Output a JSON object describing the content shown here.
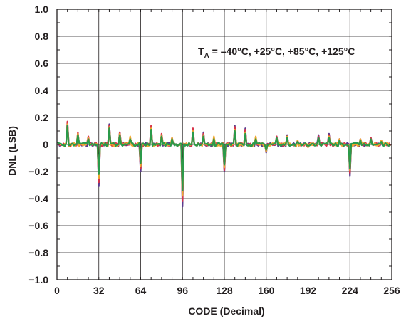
{
  "chart_data": {
    "type": "line",
    "title": "",
    "xlabel": "CODE (Decimal)",
    "ylabel": "DNL (LSB)",
    "xlim": [
      0,
      256
    ],
    "ylim": [
      -1.0,
      1.0
    ],
    "x_ticks": [
      0,
      32,
      64,
      96,
      128,
      160,
      192,
      224,
      256
    ],
    "x_tick_labels": [
      "0",
      "32",
      "64",
      "96",
      "128",
      "160",
      "192",
      "224",
      "256"
    ],
    "y_ticks": [
      1.0,
      0.8,
      0.6,
      0.4,
      0.2,
      0,
      -0.2,
      -0.4,
      -0.6,
      -0.8,
      -1.0
    ],
    "y_tick_labels": [
      "1.0",
      "0.8",
      "0.6",
      "0.4",
      "0.2",
      "0",
      "−0.2",
      "−0.4",
      "−0.6",
      "−0.8",
      "−1.0"
    ],
    "grid": true,
    "annotation": {
      "prefix": "T",
      "subscript": "A",
      "text": " = –40°C, +25°C, +85°C, +125°C"
    },
    "series": [
      {
        "color": "#5b3a8c",
        "values": [
          [
            8,
            0.16
          ],
          [
            16,
            0.08
          ],
          [
            24,
            0.05
          ],
          [
            32,
            -0.31
          ],
          [
            40,
            0.15
          ],
          [
            48,
            0.09
          ],
          [
            56,
            0.05
          ],
          [
            64,
            -0.2
          ],
          [
            72,
            0.13
          ],
          [
            80,
            0.07
          ],
          [
            88,
            0.04
          ],
          [
            96,
            -0.46
          ],
          [
            104,
            0.11
          ],
          [
            112,
            0.09
          ],
          [
            120,
            0.05
          ],
          [
            128,
            -0.2
          ],
          [
            136,
            0.14
          ],
          [
            144,
            0.12
          ],
          [
            152,
            0.05
          ],
          [
            160,
            -0.06
          ],
          [
            168,
            0.06
          ],
          [
            176,
            0.07
          ],
          [
            184,
            0.03
          ],
          [
            192,
            -0.02
          ],
          [
            200,
            0.07
          ],
          [
            208,
            0.08
          ],
          [
            216,
            0.04
          ],
          [
            224,
            -0.23
          ],
          [
            232,
            0.04
          ],
          [
            240,
            0.05
          ],
          [
            248,
            0.02
          ]
        ]
      },
      {
        "color": "#d8344a",
        "values": [
          [
            8,
            0.17
          ],
          [
            16,
            0.09
          ],
          [
            24,
            0.06
          ],
          [
            32,
            -0.28
          ],
          [
            40,
            0.14
          ],
          [
            48,
            0.09
          ],
          [
            56,
            0.05
          ],
          [
            64,
            -0.18
          ],
          [
            72,
            0.14
          ],
          [
            80,
            0.08
          ],
          [
            88,
            0.05
          ],
          [
            96,
            -0.42
          ],
          [
            104,
            0.12
          ],
          [
            112,
            0.08
          ],
          [
            120,
            0.05
          ],
          [
            128,
            -0.19
          ],
          [
            136,
            0.13
          ],
          [
            144,
            0.11
          ],
          [
            152,
            0.05
          ],
          [
            160,
            -0.05
          ],
          [
            168,
            0.06
          ],
          [
            176,
            0.06
          ],
          [
            184,
            0.03
          ],
          [
            192,
            -0.02
          ],
          [
            200,
            0.06
          ],
          [
            208,
            0.07
          ],
          [
            216,
            0.04
          ],
          [
            224,
            -0.21
          ],
          [
            232,
            0.04
          ],
          [
            240,
            0.05
          ],
          [
            248,
            0.03
          ]
        ]
      },
      {
        "color": "#f0a830",
        "values": [
          [
            8,
            0.15
          ],
          [
            16,
            0.08
          ],
          [
            24,
            0.05
          ],
          [
            32,
            -0.25
          ],
          [
            40,
            0.13
          ],
          [
            48,
            0.08
          ],
          [
            56,
            0.06
          ],
          [
            64,
            -0.16
          ],
          [
            72,
            0.12
          ],
          [
            80,
            0.07
          ],
          [
            88,
            0.05
          ],
          [
            96,
            -0.38
          ],
          [
            104,
            0.1
          ],
          [
            112,
            0.07
          ],
          [
            120,
            0.06
          ],
          [
            128,
            -0.17
          ],
          [
            136,
            0.11
          ],
          [
            144,
            0.09
          ],
          [
            152,
            0.06
          ],
          [
            160,
            -0.05
          ],
          [
            168,
            0.05
          ],
          [
            176,
            0.06
          ],
          [
            184,
            0.03
          ],
          [
            192,
            -0.02
          ],
          [
            200,
            0.05
          ],
          [
            208,
            0.06
          ],
          [
            216,
            0.04
          ],
          [
            224,
            -0.19
          ],
          [
            232,
            0.04
          ],
          [
            240,
            0.04
          ],
          [
            248,
            0.03
          ]
        ]
      },
      {
        "color": "#2a9a4a",
        "values": [
          [
            8,
            0.14
          ],
          [
            16,
            0.07
          ],
          [
            24,
            0.04
          ],
          [
            32,
            -0.22
          ],
          [
            40,
            0.12
          ],
          [
            48,
            0.07
          ],
          [
            56,
            0.04
          ],
          [
            64,
            -0.14
          ],
          [
            72,
            0.11
          ],
          [
            80,
            0.06
          ],
          [
            88,
            0.04
          ],
          [
            96,
            -0.34
          ],
          [
            104,
            0.09
          ],
          [
            112,
            0.06
          ],
          [
            120,
            0.04
          ],
          [
            128,
            -0.15
          ],
          [
            136,
            0.1
          ],
          [
            144,
            0.08
          ],
          [
            152,
            0.04
          ],
          [
            160,
            -0.04
          ],
          [
            168,
            0.05
          ],
          [
            176,
            0.05
          ],
          [
            184,
            0.02
          ],
          [
            192,
            -0.01
          ],
          [
            200,
            0.05
          ],
          [
            208,
            0.05
          ],
          [
            216,
            0.03
          ],
          [
            224,
            -0.18
          ],
          [
            232,
            0.03
          ],
          [
            240,
            0.04
          ],
          [
            248,
            0.02
          ]
        ]
      }
    ]
  }
}
